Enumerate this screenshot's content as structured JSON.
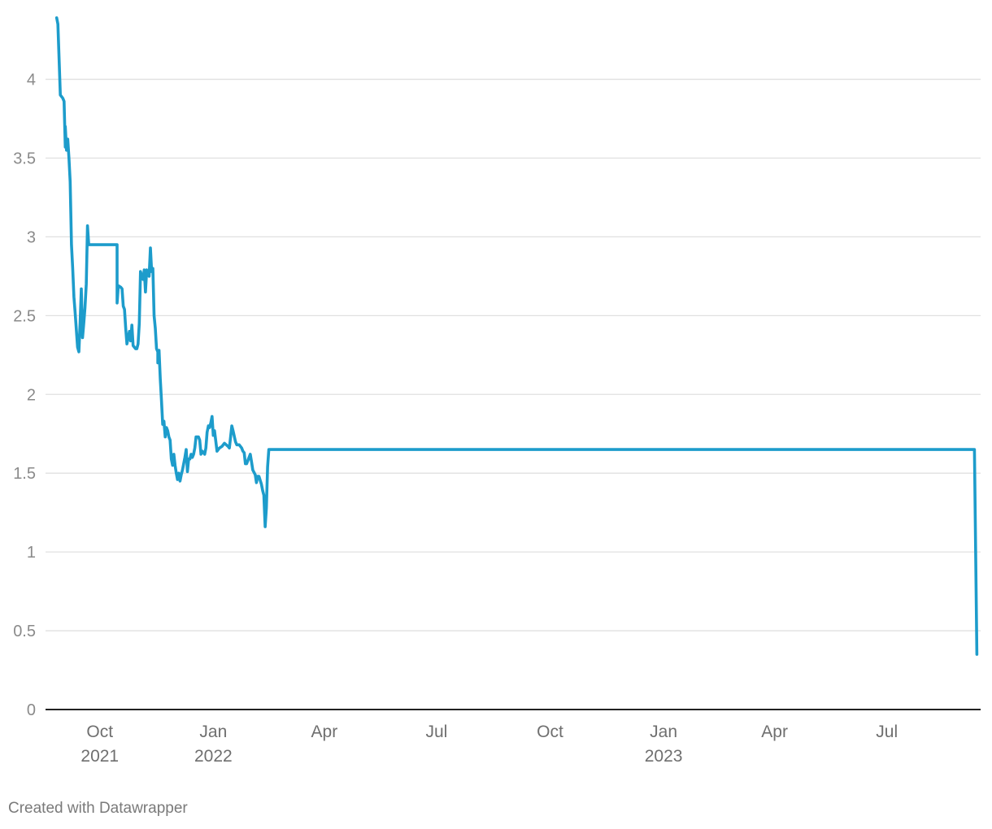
{
  "chart_data": {
    "type": "line",
    "title": "",
    "xlabel": "",
    "ylabel": "",
    "ylim": [
      0,
      4.4
    ],
    "xlim": [
      "2021-08-18",
      "2023-09-15"
    ],
    "y_ticks": [
      "0",
      "0.5",
      "1",
      "1.5",
      "2",
      "2.5",
      "3",
      "3.5",
      "4"
    ],
    "x_ticks": [
      {
        "date": "2021-10-01",
        "label": "Oct",
        "year": "2021"
      },
      {
        "date": "2022-01-01",
        "label": "Jan",
        "year": "2022"
      },
      {
        "date": "2022-04-01",
        "label": "Apr",
        "year": ""
      },
      {
        "date": "2022-07-01",
        "label": "Jul",
        "year": ""
      },
      {
        "date": "2022-10-01",
        "label": "Oct",
        "year": ""
      },
      {
        "date": "2023-01-01",
        "label": "Jan",
        "year": "2023"
      },
      {
        "date": "2023-04-01",
        "label": "Apr",
        "year": ""
      },
      {
        "date": "2023-07-01",
        "label": "Jul",
        "year": ""
      }
    ],
    "grid": true,
    "legend": "none",
    "series": [
      {
        "color": "#1d9ccb",
        "points": [
          [
            "2021-08-27",
            4.39
          ],
          [
            "2021-08-28",
            4.35
          ],
          [
            "2021-08-30",
            3.9
          ],
          [
            "2021-09-01",
            3.88
          ],
          [
            "2021-09-02",
            3.86
          ],
          [
            "2021-09-03",
            3.57
          ],
          [
            "2021-09-03",
            3.7
          ],
          [
            "2021-09-04",
            3.55
          ],
          [
            "2021-09-05",
            3.62
          ],
          [
            "2021-09-06",
            3.5
          ],
          [
            "2021-09-07",
            3.35
          ],
          [
            "2021-09-08",
            2.95
          ],
          [
            "2021-09-09",
            2.8
          ],
          [
            "2021-09-10",
            2.62
          ],
          [
            "2021-09-11",
            2.52
          ],
          [
            "2021-09-13",
            2.3
          ],
          [
            "2021-09-14",
            2.27
          ],
          [
            "2021-09-15",
            2.45
          ],
          [
            "2021-09-16",
            2.67
          ],
          [
            "2021-09-17",
            2.36
          ],
          [
            "2021-09-18",
            2.45
          ],
          [
            "2021-09-19",
            2.55
          ],
          [
            "2021-09-20",
            2.7
          ],
          [
            "2021-09-21",
            3.07
          ],
          [
            "2021-09-22",
            2.95
          ],
          [
            "2021-10-01",
            2.95
          ],
          [
            "2021-10-10",
            2.95
          ],
          [
            "2021-10-15",
            2.95
          ],
          [
            "2021-10-15",
            2.58
          ],
          [
            "2021-10-16",
            2.69
          ],
          [
            "2021-10-18",
            2.68
          ],
          [
            "2021-10-19",
            2.67
          ],
          [
            "2021-10-20",
            2.56
          ],
          [
            "2021-10-21",
            2.54
          ],
          [
            "2021-10-22",
            2.42
          ],
          [
            "2021-10-23",
            2.32
          ],
          [
            "2021-10-25",
            2.4
          ],
          [
            "2021-10-26",
            2.34
          ],
          [
            "2021-10-27",
            2.44
          ],
          [
            "2021-10-28",
            2.31
          ],
          [
            "2021-10-30",
            2.29
          ],
          [
            "2021-10-31",
            2.29
          ],
          [
            "2021-11-01",
            2.32
          ],
          [
            "2021-11-02",
            2.45
          ],
          [
            "2021-11-03",
            2.78
          ],
          [
            "2021-11-04",
            2.75
          ],
          [
            "2021-11-05",
            2.73
          ],
          [
            "2021-11-06",
            2.79
          ],
          [
            "2021-11-07",
            2.65
          ],
          [
            "2021-11-08",
            2.79
          ],
          [
            "2021-11-09",
            2.76
          ],
          [
            "2021-11-10",
            2.75
          ],
          [
            "2021-11-11",
            2.93
          ],
          [
            "2021-11-12",
            2.78
          ],
          [
            "2021-11-13",
            2.8
          ],
          [
            "2021-11-14",
            2.5
          ],
          [
            "2021-11-15",
            2.42
          ],
          [
            "2021-11-16",
            2.29
          ],
          [
            "2021-11-17",
            2.27
          ],
          [
            "2021-11-17",
            2.2
          ],
          [
            "2021-11-18",
            2.28
          ],
          [
            "2021-11-19",
            2.1
          ],
          [
            "2021-11-20",
            1.96
          ],
          [
            "2021-11-21",
            1.81
          ],
          [
            "2021-11-22",
            1.83
          ],
          [
            "2021-11-23",
            1.73
          ],
          [
            "2021-11-24",
            1.79
          ],
          [
            "2021-11-25",
            1.77
          ],
          [
            "2021-11-26",
            1.73
          ],
          [
            "2021-11-27",
            1.71
          ],
          [
            "2021-11-28",
            1.59
          ],
          [
            "2021-11-29",
            1.55
          ],
          [
            "2021-11-30",
            1.62
          ],
          [
            "2021-12-01",
            1.55
          ],
          [
            "2021-12-02",
            1.5
          ],
          [
            "2021-12-03",
            1.46
          ],
          [
            "2021-12-04",
            1.5
          ],
          [
            "2021-12-05",
            1.45
          ],
          [
            "2021-12-06",
            1.49
          ],
          [
            "2021-12-07",
            1.52
          ],
          [
            "2021-12-09",
            1.6
          ],
          [
            "2021-12-10",
            1.65
          ],
          [
            "2021-12-11",
            1.51
          ],
          [
            "2021-12-12",
            1.59
          ],
          [
            "2021-12-13",
            1.59
          ],
          [
            "2021-12-14",
            1.62
          ],
          [
            "2021-12-15",
            1.6
          ],
          [
            "2021-12-16",
            1.62
          ],
          [
            "2021-12-17",
            1.66
          ],
          [
            "2021-12-18",
            1.73
          ],
          [
            "2021-12-20",
            1.73
          ],
          [
            "2021-12-21",
            1.71
          ],
          [
            "2021-12-22",
            1.62
          ],
          [
            "2021-12-23",
            1.64
          ],
          [
            "2021-12-25",
            1.62
          ],
          [
            "2021-12-26",
            1.66
          ],
          [
            "2021-12-27",
            1.76
          ],
          [
            "2021-12-28",
            1.8
          ],
          [
            "2021-12-29",
            1.79
          ],
          [
            "2021-12-30",
            1.82
          ],
          [
            "2021-12-31",
            1.86
          ],
          [
            "2022-01-01",
            1.74
          ],
          [
            "2022-01-02",
            1.77
          ],
          [
            "2022-01-04",
            1.64
          ],
          [
            "2022-01-06",
            1.66
          ],
          [
            "2022-01-08",
            1.67
          ],
          [
            "2022-01-10",
            1.69
          ],
          [
            "2022-01-13",
            1.67
          ],
          [
            "2022-01-14",
            1.66
          ],
          [
            "2022-01-15",
            1.73
          ],
          [
            "2022-01-16",
            1.8
          ],
          [
            "2022-01-17",
            1.77
          ],
          [
            "2022-01-19",
            1.7
          ],
          [
            "2022-01-20",
            1.68
          ],
          [
            "2022-01-22",
            1.68
          ],
          [
            "2022-01-24",
            1.66
          ],
          [
            "2022-01-25",
            1.64
          ],
          [
            "2022-01-26",
            1.63
          ],
          [
            "2022-01-27",
            1.56
          ],
          [
            "2022-01-28",
            1.56
          ],
          [
            "2022-01-29",
            1.58
          ],
          [
            "2022-01-30",
            1.6
          ],
          [
            "2022-01-31",
            1.62
          ],
          [
            "2022-02-01",
            1.57
          ],
          [
            "2022-02-02",
            1.52
          ],
          [
            "2022-02-04",
            1.49
          ],
          [
            "2022-02-05",
            1.44
          ],
          [
            "2022-02-06",
            1.48
          ],
          [
            "2022-02-07",
            1.48
          ],
          [
            "2022-02-09",
            1.43
          ],
          [
            "2022-02-10",
            1.39
          ],
          [
            "2022-02-11",
            1.36
          ],
          [
            "2022-02-12",
            1.16
          ],
          [
            "2022-02-13",
            1.28
          ],
          [
            "2022-02-14",
            1.54
          ],
          [
            "2022-02-15",
            1.65
          ],
          [
            "2022-03-01",
            1.65
          ],
          [
            "2022-06-01",
            1.65
          ],
          [
            "2022-09-01",
            1.65
          ],
          [
            "2022-12-01",
            1.65
          ],
          [
            "2023-03-01",
            1.65
          ],
          [
            "2023-06-01",
            1.65
          ],
          [
            "2023-08-10",
            1.65
          ],
          [
            "2023-09-10",
            1.65
          ],
          [
            "2023-09-12",
            0.35
          ]
        ]
      }
    ]
  },
  "footer": {
    "credit": "Created with Datawrapper"
  }
}
